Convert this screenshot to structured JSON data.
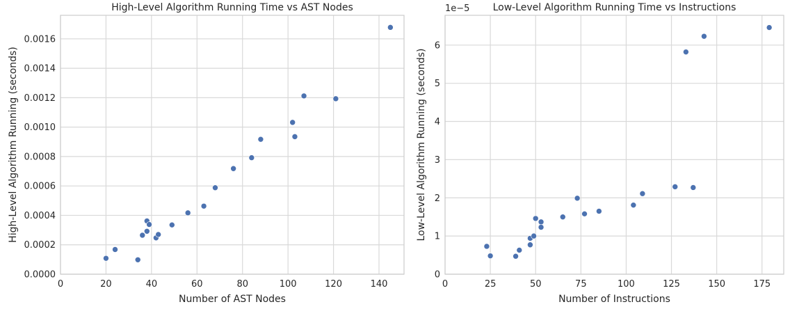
{
  "chart_data": [
    {
      "type": "scatter",
      "title": "High-Level Algorithm Running Time vs AST Nodes",
      "xlabel": "Number of AST Nodes",
      "ylabel": "High-Level Algorithm Running (seconds)",
      "xlim": [
        0,
        151
      ],
      "ylim": [
        0,
        0.00176
      ],
      "xticks": [
        0,
        20,
        40,
        60,
        80,
        100,
        120,
        140
      ],
      "xtick_labels": [
        "0",
        "20",
        "40",
        "60",
        "80",
        "100",
        "120",
        "140"
      ],
      "yticks": [
        0,
        0.0002,
        0.0004,
        0.0006,
        0.0008,
        0.001,
        0.0012,
        0.0014,
        0.0016
      ],
      "ytick_labels": [
        "0.0000",
        "0.0002",
        "0.0004",
        "0.0006",
        "0.0008",
        "0.0010",
        "0.0012",
        "0.0014",
        "0.0016"
      ],
      "grid": true,
      "color": "#4c72b0",
      "points": [
        {
          "x": 20,
          "y": 0.000108
        },
        {
          "x": 24,
          "y": 0.000168
        },
        {
          "x": 34,
          "y": 9.8e-05
        },
        {
          "x": 36,
          "y": 0.000265
        },
        {
          "x": 38,
          "y": 0.000292
        },
        {
          "x": 38,
          "y": 0.000362
        },
        {
          "x": 39,
          "y": 0.000338
        },
        {
          "x": 42,
          "y": 0.000247
        },
        {
          "x": 43,
          "y": 0.00027
        },
        {
          "x": 49,
          "y": 0.000335
        },
        {
          "x": 56,
          "y": 0.000417
        },
        {
          "x": 63,
          "y": 0.000463
        },
        {
          "x": 68,
          "y": 0.000588
        },
        {
          "x": 76,
          "y": 0.000718
        },
        {
          "x": 84,
          "y": 0.000792
        },
        {
          "x": 88,
          "y": 0.000917
        },
        {
          "x": 102,
          "y": 0.001032
        },
        {
          "x": 103,
          "y": 0.000935
        },
        {
          "x": 107,
          "y": 0.001212
        },
        {
          "x": 121,
          "y": 0.001193
        },
        {
          "x": 145,
          "y": 0.001678
        }
      ]
    },
    {
      "type": "scatter",
      "title": "Low-Level Algorithm Running Time vs Instructions",
      "xlabel": "Number of Instructions",
      "ylabel": "Low-Level Algorithm Running (seconds)",
      "offset_label": "1e−5",
      "xlim": [
        0,
        187
      ],
      "ylim": [
        0,
        6.78e-05
      ],
      "xticks": [
        0,
        25,
        50,
        75,
        100,
        125,
        150,
        175
      ],
      "xtick_labels": [
        "0",
        "25",
        "50",
        "75",
        "100",
        "125",
        "150",
        "175"
      ],
      "yticks": [
        0,
        1e-05,
        2e-05,
        3e-05,
        4e-05,
        5e-05,
        6e-05
      ],
      "ytick_labels": [
        "0",
        "1",
        "2",
        "3",
        "4",
        "5",
        "6"
      ],
      "grid": true,
      "color": "#4c72b0",
      "points": [
        {
          "x": 23,
          "y": 7.3e-06
        },
        {
          "x": 25,
          "y": 4.8e-06
        },
        {
          "x": 39,
          "y": 4.7e-06
        },
        {
          "x": 41,
          "y": 6.3e-06
        },
        {
          "x": 47,
          "y": 9.4e-06
        },
        {
          "x": 47,
          "y": 7.7e-06
        },
        {
          "x": 49,
          "y": 1e-05
        },
        {
          "x": 50,
          "y": 1.46e-05
        },
        {
          "x": 53,
          "y": 1.37e-05
        },
        {
          "x": 53,
          "y": 1.23e-05
        },
        {
          "x": 65,
          "y": 1.5e-05
        },
        {
          "x": 73,
          "y": 1.99e-05
        },
        {
          "x": 77,
          "y": 1.58e-05
        },
        {
          "x": 85,
          "y": 1.65e-05
        },
        {
          "x": 104,
          "y": 1.81e-05
        },
        {
          "x": 109,
          "y": 2.11e-05
        },
        {
          "x": 127,
          "y": 2.29e-05
        },
        {
          "x": 137,
          "y": 2.27e-05
        },
        {
          "x": 133,
          "y": 5.82e-05
        },
        {
          "x": 143,
          "y": 6.23e-05
        },
        {
          "x": 179,
          "y": 6.46e-05
        }
      ]
    }
  ]
}
